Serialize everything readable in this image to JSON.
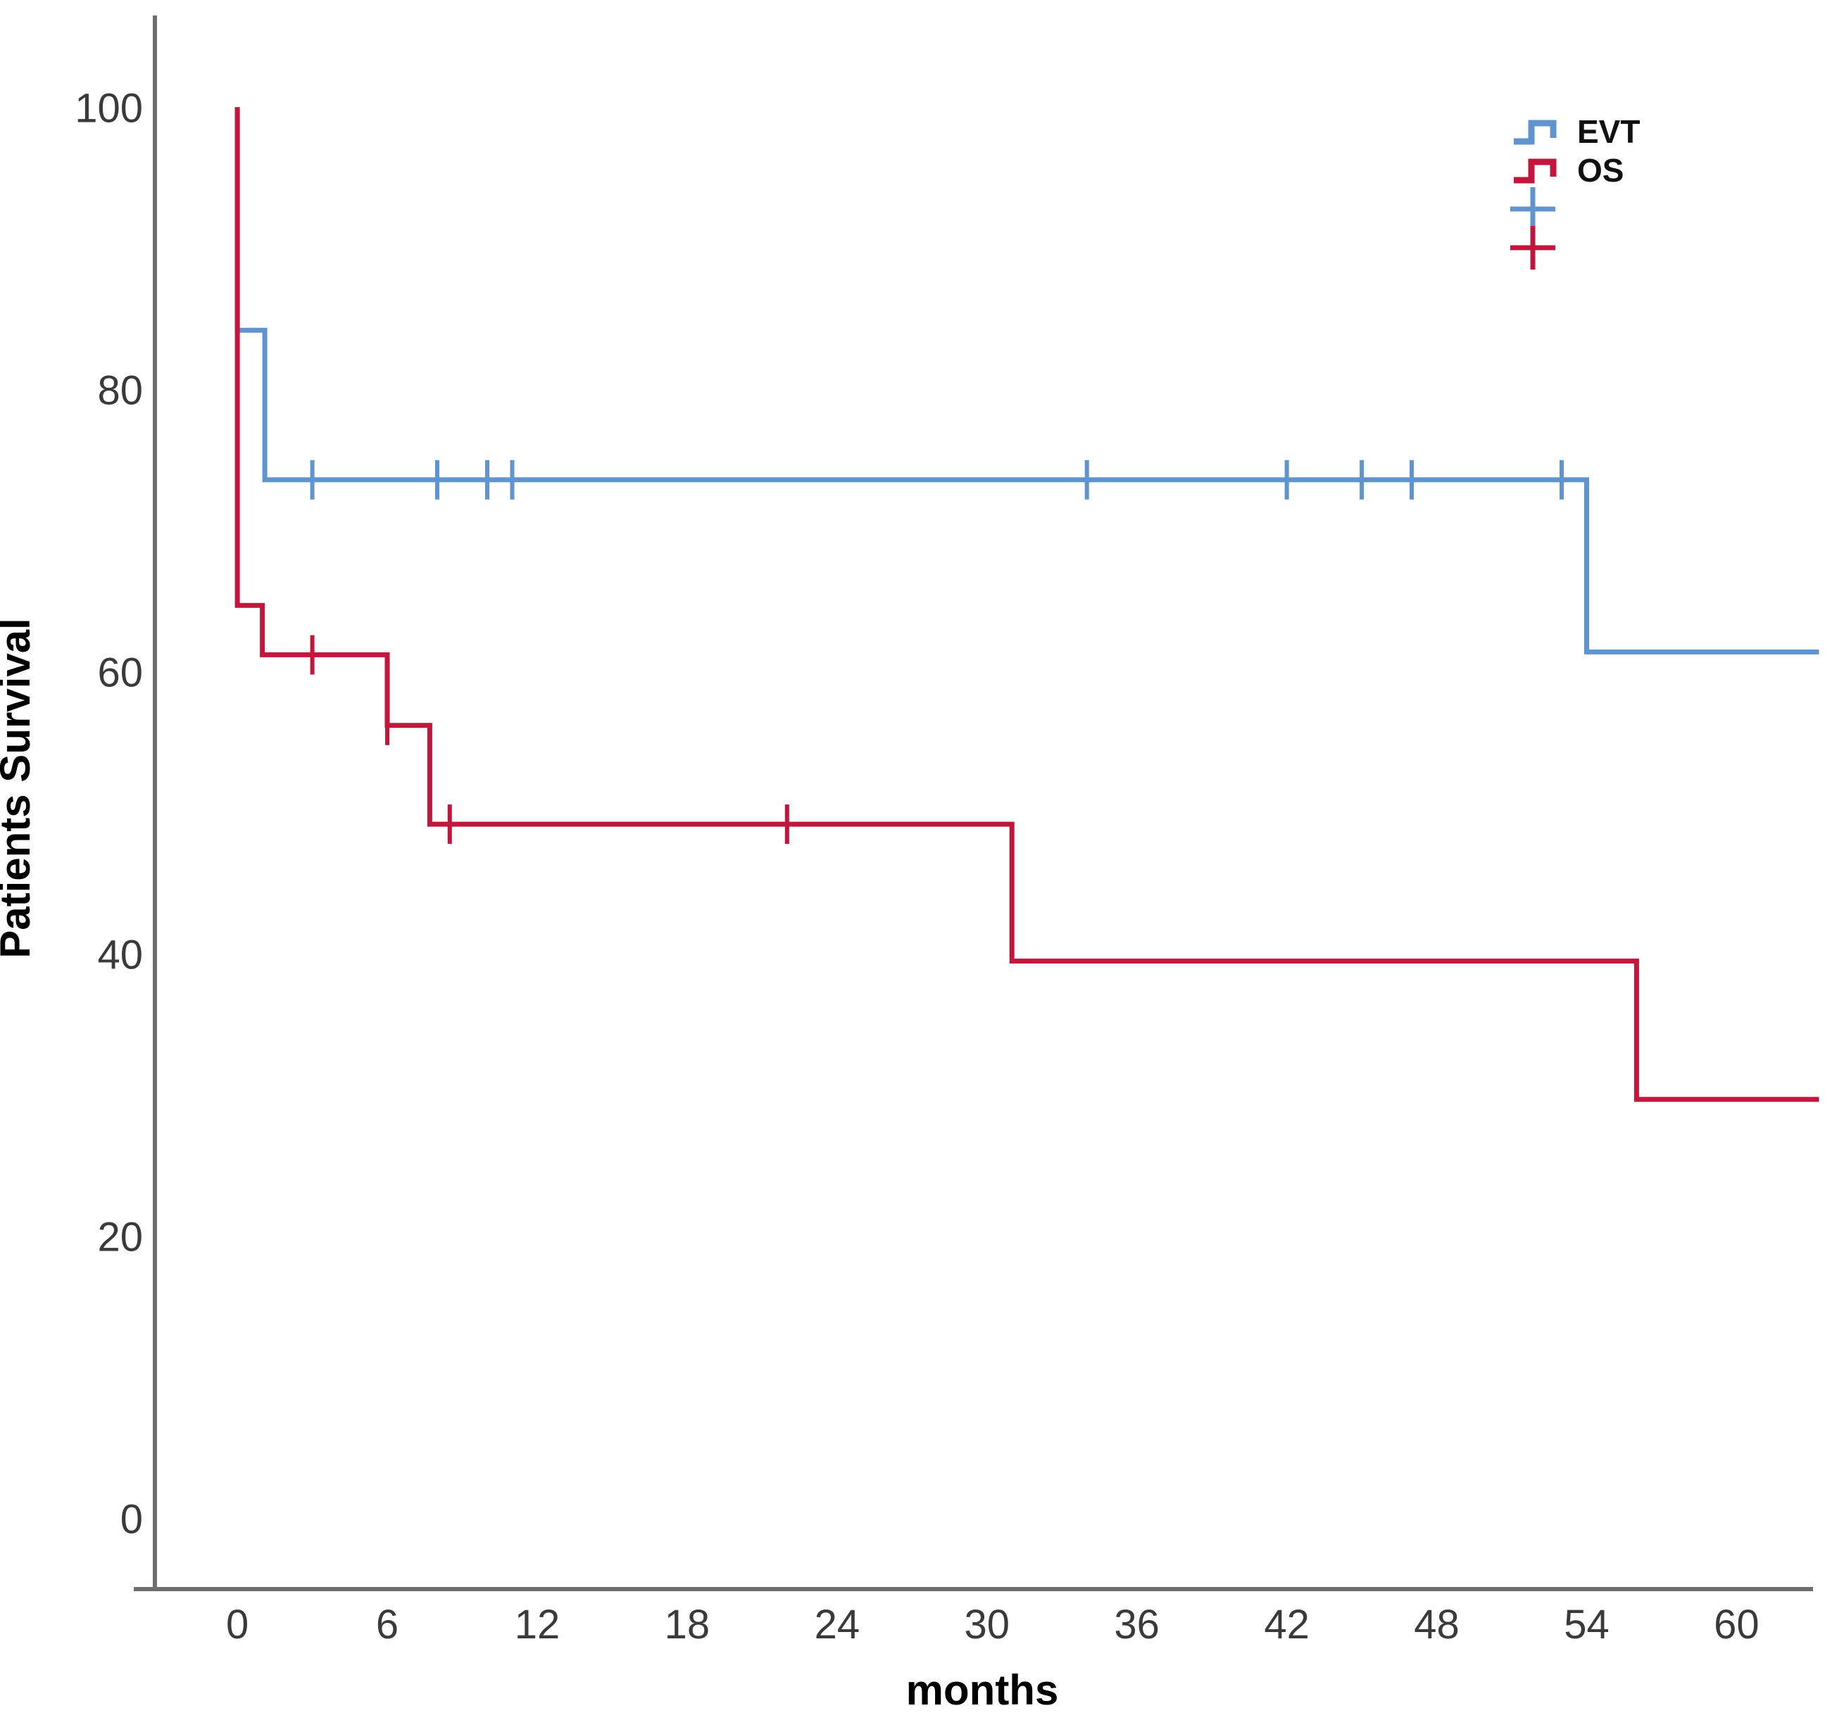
{
  "figure": {
    "y_axis_title": "Patients Survival",
    "x_axis_title": "months"
  },
  "colors": {
    "evt_blue": "#5f94ce",
    "os_red": "#c2163c",
    "axis_line": "#6e6e6e",
    "tick_labels": "#3a3a3a",
    "titles": "#000000"
  },
  "legend": {
    "entries": [
      {
        "label": "EVT",
        "color": "#5f94ce",
        "symbol": "step"
      },
      {
        "label": "OS",
        "color": "#c2163c",
        "symbol": "step"
      },
      {
        "label": "",
        "color": "#5f94ce",
        "symbol": "censor-cross"
      },
      {
        "label": "",
        "color": "#c2163c",
        "symbol": "censor-cross"
      }
    ]
  },
  "chart_data": {
    "type": "line",
    "subtype": "kaplan-meier-step-function",
    "title": "",
    "xlabel": "months",
    "ylabel": "Patients Survival",
    "xlim": [
      -3.3,
      64.3
    ],
    "ylim": [
      -5,
      106.5
    ],
    "x_ticks": [
      0,
      6,
      12,
      18,
      24,
      30,
      36,
      42,
      48,
      54,
      60
    ],
    "y_ticks": [
      0,
      20,
      40,
      60,
      80,
      100
    ],
    "grid": false,
    "legend_position": "top-right",
    "series": [
      {
        "name": "EVT",
        "color": "#5f94ce",
        "steps": [
          [
            0,
            100
          ],
          [
            0,
            84.2
          ],
          [
            1.1,
            84.2
          ],
          [
            1.1,
            73.6
          ],
          [
            54,
            73.6
          ],
          [
            54,
            61.4
          ],
          [
            63.3,
            61.4
          ]
        ],
        "censor_marks": [
          [
            3,
            73.6
          ],
          [
            8,
            73.6
          ],
          [
            10,
            73.6
          ],
          [
            11,
            73.6
          ],
          [
            34,
            73.6
          ],
          [
            42,
            73.6
          ],
          [
            45,
            73.6
          ],
          [
            47,
            73.6
          ],
          [
            53,
            73.6
          ]
        ]
      },
      {
        "name": "OS",
        "color": "#c2163c",
        "steps": [
          [
            0,
            100
          ],
          [
            0,
            64.7
          ],
          [
            1,
            64.7
          ],
          [
            1,
            61.2
          ],
          [
            6,
            61.2
          ],
          [
            6,
            56.2
          ],
          [
            7.7,
            56.2
          ],
          [
            7.7,
            49.2
          ],
          [
            31,
            49.2
          ],
          [
            31,
            39.5
          ],
          [
            56,
            39.5
          ],
          [
            56,
            29.7
          ],
          [
            63.3,
            29.7
          ]
        ],
        "censor_marks": [
          [
            3,
            61.2
          ],
          [
            6,
            56.2
          ],
          [
            8.5,
            49.2
          ],
          [
            22,
            49.2
          ]
        ]
      }
    ]
  }
}
